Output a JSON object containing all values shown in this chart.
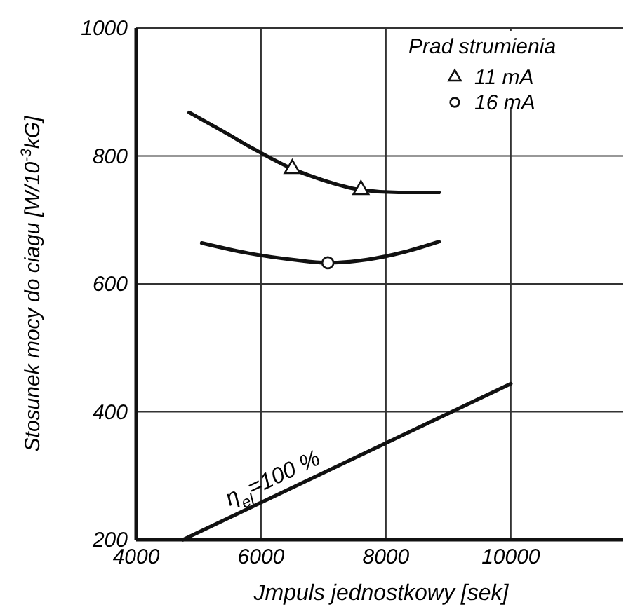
{
  "chart_data": {
    "type": "line",
    "xlabel": "Jmpuls jednostkowy  [sek]",
    "ylabel": "Stosunek mocy do ciagu [W/10$^{-3}$kG]",
    "legend_title": "Prad strumienia",
    "xlim": [
      4000,
      11800
    ],
    "ylim": [
      200,
      1000
    ],
    "xticks": [
      4000,
      6000,
      8000,
      10000
    ],
    "yticks": [
      200,
      400,
      600,
      800,
      1000
    ],
    "grid": true,
    "legend": "top right",
    "series": [
      {
        "color": "#111111",
        "marker": "none",
        "x": [
          4850,
          5400,
          5900,
          6500,
          7000,
          7600,
          8200,
          8850
        ],
        "values": [
          868,
          838,
          810,
          780,
          762,
          747,
          743,
          743
        ]
      },
      {
        "color": "#111111",
        "marker": "none",
        "x": [
          5050,
          5800,
          6500,
          7070,
          7700,
          8300,
          8850
        ],
        "values": [
          664,
          648,
          638,
          633,
          638,
          650,
          666
        ]
      },
      {
        "color": "#111111",
        "marker": "none",
        "x": [
          4750,
          10000
        ],
        "values": [
          200,
          444
        ]
      },
      {
        "type": "scatter",
        "name": "11 mA",
        "color": "#111111",
        "marker": "triangle",
        "x": [
          6500,
          7600
        ],
        "values": [
          780,
          747
        ]
      },
      {
        "type": "scatter",
        "name": "16 mA",
        "color": "#111111",
        "marker": "circle",
        "x": [
          7070
        ],
        "values": [
          633
        ]
      }
    ],
    "annotations": [
      {
        "text": "η$_{el}$=100 %",
        "x": 6300,
        "y": 272
      }
    ]
  }
}
